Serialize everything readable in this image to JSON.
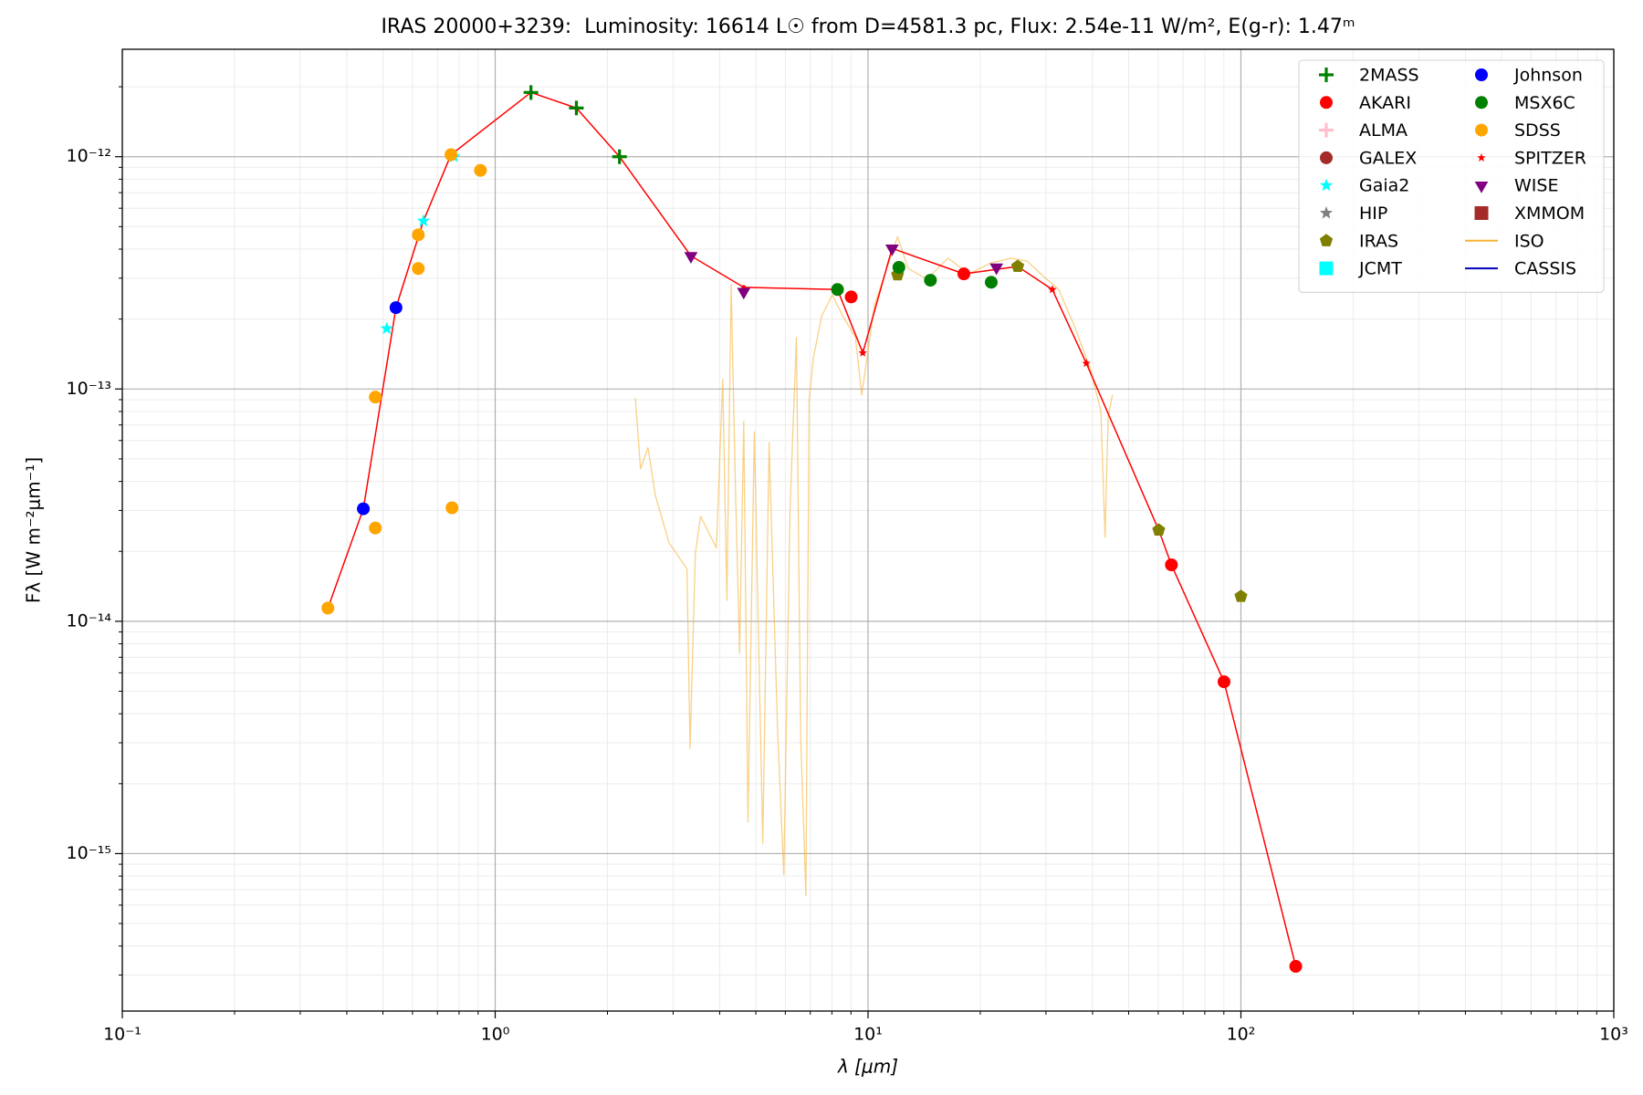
{
  "chart_data": {
    "type": "scatter",
    "title": "IRAS 20000+3239:  Luminosity: 16614 L☉ from D=4581.3 pc, Flux: 2.54e-11 W/m², E(g-r): 1.47ᵐ",
    "xlabel": "λ [μm]",
    "ylabel": "Fλ [W m⁻²μm⁻¹]",
    "xlog": true,
    "ylog": true,
    "grid": true,
    "legend": "upper right",
    "xlim": [
      0.1,
      1000
    ],
    "ylim": [
      2.1e-16,
      2.9e-12
    ],
    "xticks": [
      {
        "value": 0.1,
        "label": "10⁻¹"
      },
      {
        "value": 1,
        "label": "10⁰"
      },
      {
        "value": 10,
        "label": "10¹"
      },
      {
        "value": 100,
        "label": "10²"
      },
      {
        "value": 1000,
        "label": "10³"
      }
    ],
    "yticks": [
      {
        "value": 1e-15,
        "label": "10⁻¹⁵"
      },
      {
        "value": 1e-14,
        "label": "10⁻¹⁴"
      },
      {
        "value": 1e-13,
        "label": "10⁻¹³"
      },
      {
        "value": 1e-12,
        "label": "10⁻¹²"
      }
    ],
    "series": [
      {
        "name": "2MASS",
        "color": "#008000",
        "marker": "plus",
        "x": [
          1.247,
          1.651,
          2.155
        ],
        "values": [
          1.89e-12,
          1.62e-12,
          1e-12
        ]
      },
      {
        "name": "AKARI",
        "color": "#ff0000",
        "marker": "circle",
        "x": [
          9.01,
          18.07,
          65.1,
          90.1,
          140.3
        ],
        "values": [
          2.49e-13,
          3.13e-13,
          1.75e-14,
          5.49e-15,
          3.27e-16
        ]
      },
      {
        "name": "ALMA",
        "color": "#ffc0cb",
        "marker": "plus",
        "x": [],
        "values": []
      },
      {
        "name": "GALEX",
        "color": "#a52a2a",
        "marker": "circle",
        "x": [],
        "values": []
      },
      {
        "name": "Gaia2",
        "color": "#00ffff",
        "marker": "star",
        "x": [
          0.512,
          0.642,
          0.776
        ],
        "values": [
          1.82e-13,
          5.29e-13,
          1e-12
        ]
      },
      {
        "name": "HIP",
        "color": "#808080",
        "marker": "star",
        "x": [],
        "values": []
      },
      {
        "name": "IRAS",
        "color": "#808000",
        "marker": "pentagon",
        "x": [
          12.0,
          25.2,
          60.2,
          100
        ],
        "values": [
          3.1e-13,
          3.37e-13,
          2.47e-14,
          1.28e-14
        ]
      },
      {
        "name": "JCMT",
        "color": "#00ffff",
        "marker": "square",
        "x": [],
        "values": []
      },
      {
        "name": "Johnson",
        "color": "#0000ff",
        "marker": "circle",
        "x": [
          0.443,
          0.542
        ],
        "values": [
          3.05e-14,
          2.24e-13
        ]
      },
      {
        "name": "MSX6C",
        "color": "#008000",
        "marker": "circle",
        "x": [
          8.28,
          12.1,
          14.7,
          21.4
        ],
        "values": [
          2.68e-13,
          3.34e-13,
          2.94e-13,
          2.88e-13
        ]
      },
      {
        "name": "SDSS",
        "color": "#ffa500",
        "marker": "circle",
        "x": [
          0.356,
          0.477,
          0.477,
          0.622,
          0.622,
          0.761,
          0.766,
          0.913
        ],
        "values": [
          1.14e-14,
          2.52e-14,
          9.23e-14,
          4.61e-13,
          3.3e-13,
          1.02e-12,
          3.08e-14,
          8.73e-13
        ]
      },
      {
        "name": "SPITZER",
        "color": "#ff0000",
        "marker": "smallstar",
        "x": [
          9.68,
          31.2,
          38.5
        ],
        "values": [
          1.43e-13,
          2.68e-13,
          1.29e-13
        ]
      },
      {
        "name": "WISE",
        "color": "#800080",
        "marker": "triangle",
        "x": [
          3.35,
          4.64,
          11.6,
          22.1
        ],
        "values": [
          3.74e-13,
          2.62e-13,
          4.03e-13,
          3.34e-13
        ]
      },
      {
        "name": "XMMOM",
        "color": "#a52a2a",
        "marker": "square",
        "x": [],
        "values": []
      },
      {
        "name": "ISO",
        "color": "#f5b335",
        "marker": "line",
        "x": [
          2.376,
          2.454,
          2.569,
          2.688,
          2.925,
          3.268,
          3.332,
          3.442,
          3.555,
          3.92,
          4.076,
          4.183,
          4.294,
          4.407,
          4.524,
          4.642,
          4.764,
          4.954,
          5.22,
          5.427,
          5.716,
          5.943,
          6.18,
          6.426,
          6.596,
          6.813,
          6.948,
          7.132,
          7.511,
          8.017,
          8.554,
          9.25,
          9.618,
          10.4,
          11.1,
          12.0,
          12.81,
          14.39,
          16.4,
          18.67,
          21.27,
          24.23,
          26.71,
          29.44,
          32.45,
          35.79,
          39.45,
          42.1,
          43.21,
          44.07,
          45.24
        ],
        "values": [
          9.13e-14,
          4.53e-14,
          5.59e-14,
          3.49e-14,
          2.18e-14,
          1.68e-14,
          2.84e-15,
          1.96e-14,
          2.83e-14,
          2.07e-14,
          1.1e-13,
          1.23e-14,
          2.82e-13,
          3.88e-14,
          7.28e-15,
          7.26e-14,
          1.37e-15,
          6.54e-14,
          1.11e-15,
          5.89e-14,
          3.5e-15,
          8.11e-16,
          3.14e-14,
          1.67e-13,
          3.15e-15,
          6.58e-16,
          8.94e-14,
          1.36e-13,
          2.06e-13,
          2.54e-13,
          2.06e-13,
          1.67e-13,
          9.42e-14,
          2.29e-13,
          3.13e-13,
          4.52e-13,
          3.3e-13,
          2.97e-13,
          3.66e-13,
          3.13e-13,
          3.48e-13,
          3.66e-13,
          3.55e-13,
          3.07e-13,
          2.68e-13,
          1.86e-13,
          1.22e-13,
          8.05e-14,
          2.3e-14,
          7.64e-14,
          9.42e-14
        ]
      },
      {
        "name": "CASSIS",
        "color": "#0000bb",
        "marker": "line",
        "x": [],
        "values": []
      },
      {
        "color": "#ff0000",
        "marker": "model",
        "x": [
          0.356,
          0.443,
          0.542,
          0.626,
          0.642,
          0.761,
          1.247,
          1.651,
          2.155,
          3.35,
          4.64,
          8.28,
          9.68,
          11.6,
          18.07,
          25.2,
          31.2,
          38.5,
          60.2,
          65.1,
          90.1,
          140.3
        ],
        "values": [
          1.14e-14,
          3.05e-14,
          2.24e-13,
          4.66e-13,
          5.29e-13,
          1.02e-12,
          1.89e-12,
          1.62e-12,
          1e-12,
          3.74e-13,
          2.74e-13,
          2.68e-13,
          1.43e-13,
          4.03e-13,
          3.13e-13,
          3.37e-13,
          2.68e-13,
          1.29e-13,
          2.47e-14,
          1.75e-14,
          5.49e-15,
          3.27e-16
        ]
      }
    ]
  }
}
